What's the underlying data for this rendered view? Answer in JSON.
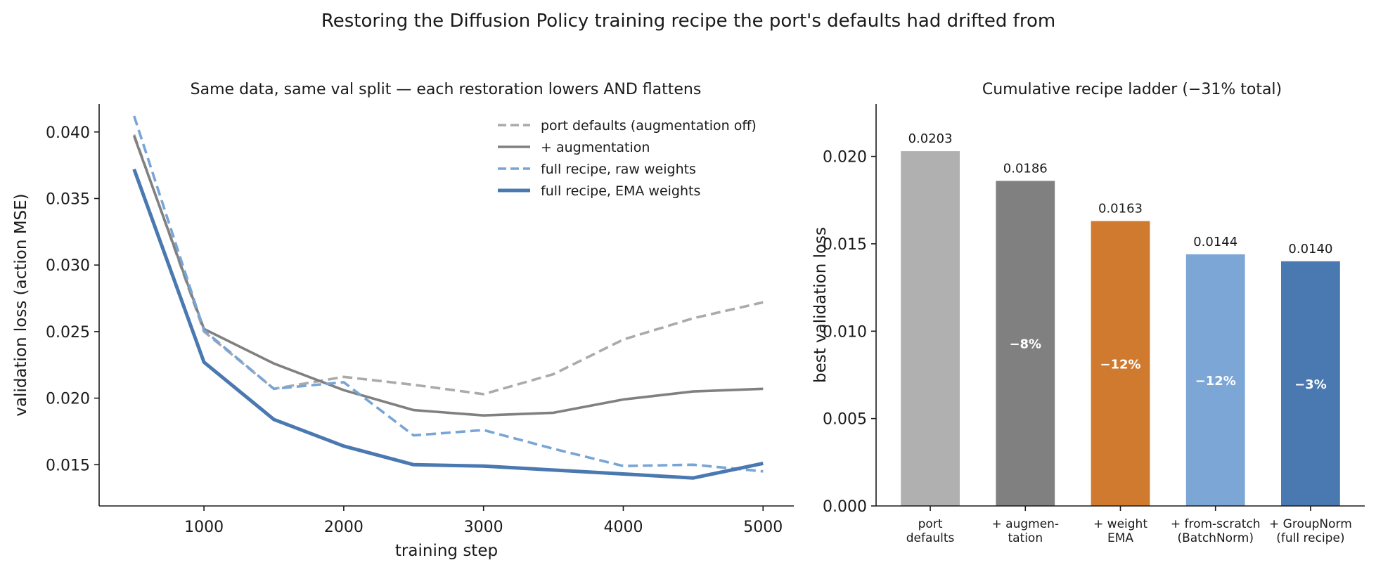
{
  "figure_title": "Restoring the Diffusion Policy training recipe the port's defaults had drifted from",
  "chart_data": [
    {
      "type": "line",
      "title": "Same data, same val split — each restoration lowers AND flattens",
      "xlabel": "training step",
      "ylabel": "validation loss (action MSE)",
      "xlim": [
        250,
        5220
      ],
      "ylim": [
        0.0119,
        0.0421
      ],
      "xticks": [
        1000,
        2000,
        3000,
        4000,
        5000
      ],
      "yticks": [
        0.015,
        0.02,
        0.025,
        0.03,
        0.035,
        0.04
      ],
      "x": [
        500,
        1000,
        1500,
        2000,
        2500,
        3000,
        3500,
        4000,
        4500,
        5000
      ],
      "legend_position": "upper right",
      "series": [
        {
          "name": "port defaults (augmentation off)",
          "color": "#aaaaaa",
          "dash": "dashed",
          "width": "medium",
          "values": [
            0.0398,
            0.025,
            0.0207,
            0.0216,
            0.021,
            0.0203,
            0.0218,
            0.0244,
            0.026,
            0.0272
          ]
        },
        {
          "name": "+ augmentation",
          "color": "#808080",
          "dash": "solid",
          "width": "medium",
          "values": [
            0.0397,
            0.0252,
            0.0226,
            0.0206,
            0.0191,
            0.0187,
            0.0189,
            0.0199,
            0.0205,
            0.0207
          ]
        },
        {
          "name": "full recipe, raw weights",
          "color": "#78a5d6",
          "dash": "dashed",
          "width": "medium",
          "values": [
            0.0412,
            0.0251,
            0.0207,
            0.0212,
            0.0172,
            0.0176,
            0.0162,
            0.0149,
            0.015,
            0.0145
          ]
        },
        {
          "name": "full recipe, EMA weights",
          "color": "#4a78b0",
          "dash": "solid",
          "width": "thick",
          "values": [
            0.0372,
            0.0227,
            0.0184,
            0.0164,
            0.015,
            0.0149,
            0.0146,
            0.0143,
            0.014,
            0.0151
          ]
        }
      ]
    },
    {
      "type": "bar",
      "title": "Cumulative recipe ladder (−31% total)",
      "xlabel": "",
      "ylabel": "best validation loss",
      "ylim": [
        0,
        0.023
      ],
      "yticks": [
        "0.000",
        "0.005",
        "0.010",
        "0.015",
        "0.020"
      ],
      "ytick_values": [
        0,
        0.005,
        0.01,
        0.015,
        0.02
      ],
      "categories": [
        [
          "port",
          "defaults"
        ],
        [
          "+ augmen-",
          "tation"
        ],
        [
          "+ weight",
          "EMA"
        ],
        [
          "+ from-scratch",
          "(BatchNorm)"
        ],
        [
          "+ GroupNorm",
          "(full recipe)"
        ]
      ],
      "values": [
        0.0203,
        0.0186,
        0.0163,
        0.0144,
        0.014
      ],
      "value_labels": [
        "0.0203",
        "0.0186",
        "0.0163",
        "0.0144",
        "0.0140"
      ],
      "colors": [
        "#b0b0b0",
        "#808080",
        "#d07a30",
        "#7ba6d6",
        "#4a78b0"
      ],
      "delta_labels": [
        "",
        "−8%",
        "−12%",
        "−12%",
        "−3%"
      ]
    }
  ]
}
